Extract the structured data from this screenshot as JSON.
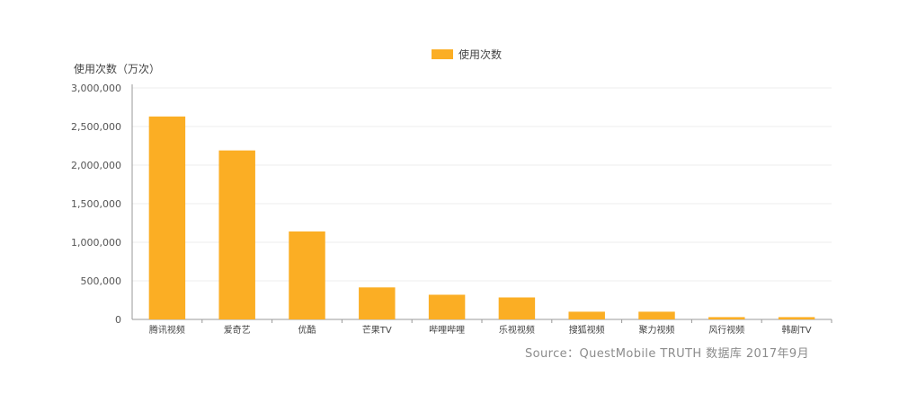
{
  "chart_data": {
    "type": "bar",
    "ylabel": "使用次数（万次）",
    "legend": [
      "使用次数"
    ],
    "legend_position": "top",
    "source": "Source：QuestMobile TRUTH 数据库 2017年9月",
    "bar_color": "#fbae24",
    "categories": [
      "腾讯视频",
      "爱奇艺",
      "优酷",
      "芒果TV",
      "哔哩哔哩",
      "乐视视频",
      "搜狐视频",
      "聚力视频",
      "风行视频",
      "韩剧TV"
    ],
    "series": [
      {
        "name": "使用次数",
        "values": [
          2630000,
          2190000,
          1140000,
          415000,
          320000,
          285000,
          100000,
          100000,
          30000,
          30000
        ]
      }
    ],
    "ylim": [
      0,
      3000000
    ],
    "yticks": [
      0,
      500000,
      1000000,
      1500000,
      2000000,
      2500000,
      3000000
    ],
    "ytick_labels": [
      "0",
      "500,000",
      "1,000,000",
      "1,500,000",
      "2,000,000",
      "2,500,000",
      "3,000,000"
    ],
    "grid": true
  }
}
